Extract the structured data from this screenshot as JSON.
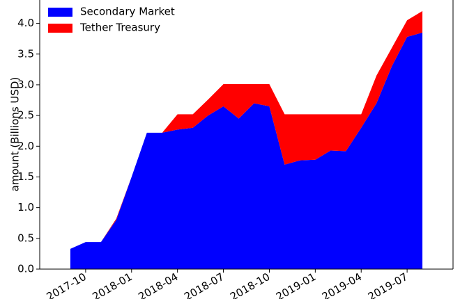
{
  "chart_data": {
    "type": "stacked_area",
    "ylabel": "amount (Billions USD)",
    "x": [
      "2017-09",
      "2017-10",
      "2017-11",
      "2017-12",
      "2018-01",
      "2018-02",
      "2018-03",
      "2018-04",
      "2018-05",
      "2018-06",
      "2018-07",
      "2018-08",
      "2018-09",
      "2018-10",
      "2018-11",
      "2018-12",
      "2019-01",
      "2019-02",
      "2019-03",
      "2019-04",
      "2019-05",
      "2019-06",
      "2019-07",
      "2019-08"
    ],
    "series": [
      {
        "name": "Secondary Market",
        "color": "#0000ff",
        "values": [
          0.33,
          0.44,
          0.44,
          0.8,
          1.5,
          2.22,
          2.22,
          2.27,
          2.3,
          2.5,
          2.65,
          2.45,
          2.7,
          2.65,
          1.7,
          1.77,
          1.78,
          1.93,
          1.92,
          2.3,
          2.7,
          3.3,
          3.78,
          3.85
        ]
      },
      {
        "name": "Tether Treasury",
        "color": "#ff0000",
        "values": [
          0,
          0,
          0,
          0.02,
          0,
          0,
          0,
          0.25,
          0.22,
          0.26,
          0.36,
          0.56,
          0.31,
          0.36,
          0.82,
          0.75,
          0.74,
          0.59,
          0.6,
          0.22,
          0.45,
          0.3,
          0.27,
          0.35
        ]
      }
    ],
    "xlim": [
      "2017-07",
      "2019-10"
    ],
    "xticks": [
      "2017-10",
      "2018-01",
      "2018-04",
      "2018-07",
      "2018-10",
      "2019-01",
      "2019-04",
      "2019-07"
    ],
    "ylim": [
      0,
      4.38
    ],
    "yticks": [
      {
        "value": 0,
        "label": "0.0"
      },
      {
        "value": 0.5,
        "label": "0.5"
      },
      {
        "value": 1,
        "label": "1.0"
      },
      {
        "value": 1.5,
        "label": "1.5"
      },
      {
        "value": 2,
        "label": "2.0"
      },
      {
        "value": 2.5,
        "label": "2.5"
      },
      {
        "value": 3,
        "label": "3.0"
      },
      {
        "value": 3.5,
        "label": "3.5"
      },
      {
        "value": 4,
        "label": "4.0"
      }
    ],
    "legend": "upper-left"
  }
}
